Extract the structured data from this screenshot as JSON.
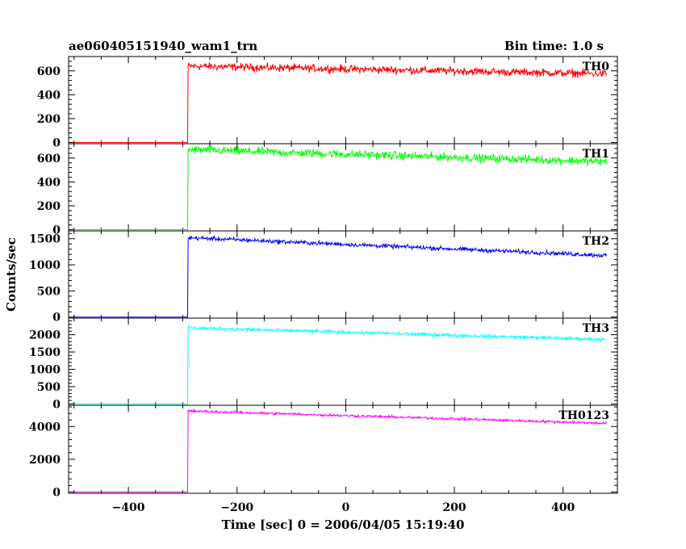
{
  "header": {
    "title": "ae060405151940_wam1_trn",
    "bin_time": "Bin time: 1.0 s"
  },
  "ylabel": "Counts/sec",
  "xlabel": "Time [sec] 0 = 2006/04/05 15:19:40",
  "chart_data": {
    "type": "line",
    "xlim": [
      -510,
      500
    ],
    "x_ticks": [
      -400,
      -200,
      0,
      200,
      400
    ],
    "x_tick_labels": [
      "−400",
      "−200",
      "0",
      "200",
      "400"
    ],
    "bin_time_s": 1.0,
    "onset_time": -290,
    "data_start": -500,
    "data_end": 480,
    "panels": [
      {
        "name": "TH0",
        "color": "#ff0000",
        "ylim": [
          -10,
          720
        ],
        "y_ticks": [
          0,
          200,
          400,
          600
        ],
        "y_tick_labels": [
          "0",
          "200",
          "400",
          "600"
        ],
        "pre_level": 0,
        "peak_level": 640,
        "end_level": 575,
        "noise": 28
      },
      {
        "name": "TH1",
        "color": "#00ff00",
        "ylim": [
          -10,
          720
        ],
        "y_ticks": [
          0,
          200,
          400,
          600
        ],
        "y_tick_labels": [
          "0",
          "200",
          "400",
          "600"
        ],
        "pre_level": 0,
        "peak_level": 670,
        "end_level": 570,
        "noise": 30
      },
      {
        "name": "TH2",
        "color": "#0000ff",
        "ylim": [
          -20,
          1650
        ],
        "y_ticks": [
          0,
          500,
          1000,
          1500
        ],
        "y_tick_labels": [
          "0",
          "500",
          "1000",
          "1500"
        ],
        "pre_level": 0,
        "peak_level": 1520,
        "end_level": 1180,
        "noise": 35
      },
      {
        "name": "TH3",
        "color": "#00ffff",
        "ylim": [
          -40,
          2480
        ],
        "y_ticks": [
          0,
          500,
          1000,
          1500,
          2000
        ],
        "y_tick_labels": [
          "0",
          "500",
          "1000",
          "1500",
          "2000"
        ],
        "pre_level": 0,
        "peak_level": 2200,
        "end_level": 1860,
        "noise": 45
      },
      {
        "name": "TH0123",
        "color": "#ff00ff",
        "ylim": [
          -80,
          5300
        ],
        "y_ticks": [
          0,
          2000,
          4000
        ],
        "y_tick_labels": [
          "0",
          "2000",
          "4000"
        ],
        "pre_level": 0,
        "peak_level": 4950,
        "end_level": 4200,
        "noise": 70
      }
    ]
  }
}
